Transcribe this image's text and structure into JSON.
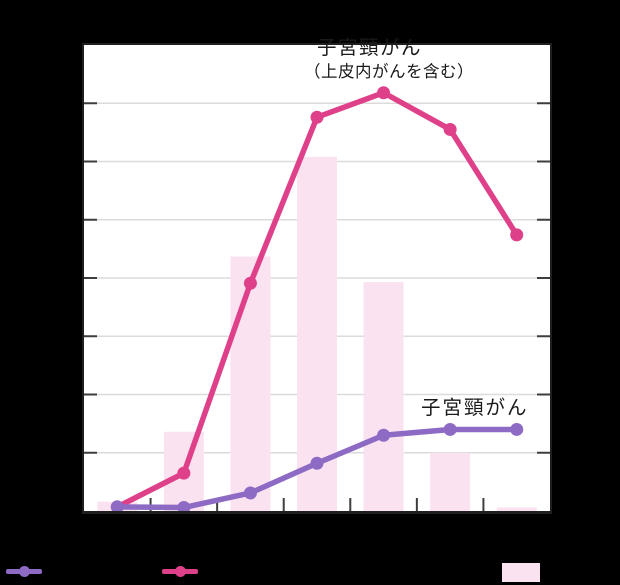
{
  "annotations": {
    "pink_label_line1": "子宮頸がん",
    "pink_label_line2": "（上皮内がんを含む）",
    "purple_label": "子宮頸がん"
  },
  "colors": {
    "background": "#000000",
    "plot_background": "#ffffff",
    "frame": "#1f1f1f",
    "gridline": "#dbdbdb",
    "tick": "#3d3d3d",
    "pink_line": "#de4189",
    "purple_line": "#8d6ac4",
    "bar_fill": "#fbe2f1"
  },
  "legend": {
    "position": "bottom",
    "labels_visible": false,
    "entries": [
      {
        "marker": "line-dot",
        "color_key": "purple_line",
        "series": "子宮頸がん"
      },
      {
        "marker": "line-dot",
        "color_key": "pink_line",
        "series": "子宮頸がん（上皮内がんを含む）"
      },
      {
        "marker": "rect",
        "color_key": "bar_fill",
        "series": ""
      }
    ]
  },
  "chart_data": {
    "type": "combo (bar + line)",
    "title": "",
    "xlabel": "",
    "ylabel": "",
    "categories": [
      "",
      "",
      "",
      "",
      "",
      "",
      ""
    ],
    "x_tick_labels_visible": false,
    "y_axis": {
      "min": 0,
      "max": 8,
      "gridline_step": 1,
      "labels_visible": false,
      "unit": "gridline intervals (axis numbers not visible in image)"
    },
    "grid": true,
    "series": [
      {
        "name": "",
        "type": "bar",
        "color_key": "bar_fill",
        "values": [
          0.16,
          1.36,
          4.37,
          6.08,
          3.93,
          1.0,
          0.06
        ]
      },
      {
        "name": "子宮頸がん（上皮内がんを含む）",
        "type": "line",
        "color_key": "pink_line",
        "values": [
          0.07,
          0.65,
          3.91,
          6.76,
          7.18,
          6.55,
          4.74
        ]
      },
      {
        "name": "子宮頸がん",
        "type": "line",
        "color_key": "purple_line",
        "values": [
          0.07,
          0.06,
          0.31,
          0.82,
          1.3,
          1.4,
          1.4
        ]
      }
    ]
  }
}
